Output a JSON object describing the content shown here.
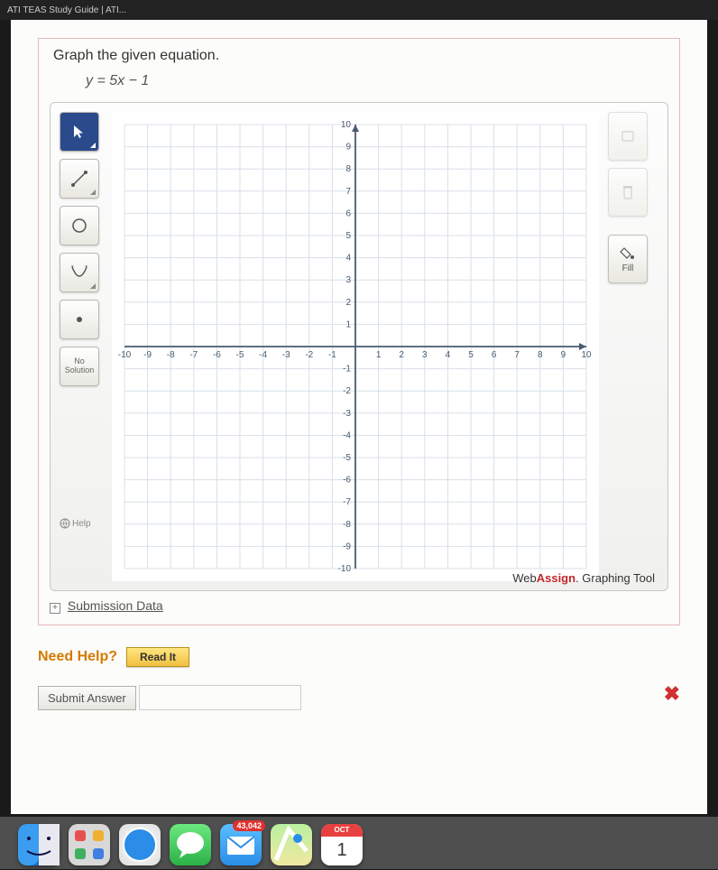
{
  "browser_tab": "ATI TEAS Study Guide | ATI...",
  "question": {
    "prompt": "Graph the given equation.",
    "equation": "y = 5x − 1"
  },
  "graph": {
    "xmin": -10,
    "xmax": 10,
    "ymin": -10,
    "ymax": 10,
    "tick_step": 1,
    "grid_major_color": "#b8c8d8",
    "grid_minor_color": "#d8e0e8",
    "axis_color": "#4a5a70",
    "label_color": "#4a5a70",
    "label_fontsize": 10,
    "background": "#ffffff"
  },
  "tools": {
    "pointer": "pointer",
    "line": "line",
    "circle": "circle",
    "parabola": "parabola",
    "point": "point",
    "no_solution_l1": "No",
    "no_solution_l2": "Solution",
    "help": "Help"
  },
  "right_tools": {
    "undo": "",
    "clear": "",
    "fill": "Fill"
  },
  "brand": {
    "prefix": "Web",
    "bold": "Assign",
    "suffix": ". Graphing Tool"
  },
  "submission_link": "Submission Data",
  "need_help": {
    "label": "Need Help?",
    "read_it": "Read It"
  },
  "submit": "Submit Answer",
  "dock": {
    "finder": "#2e7de8",
    "launchpad": "#e8e8e8",
    "safari": "#2b8de8",
    "messages": "#3ac550",
    "mail_badge": "43,042",
    "mail": "#3a9de8",
    "maps": "#e8e8e8",
    "calendar": "#ffffff",
    "calendar_text": "OCT"
  }
}
